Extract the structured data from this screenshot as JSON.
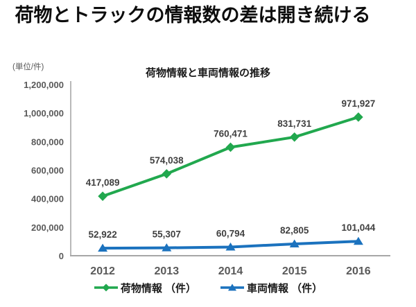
{
  "header": {
    "title": "荷物とトラックの情報数の差は開き続ける"
  },
  "chart_data": {
    "type": "line",
    "title": "荷物情報と車両情報の推移",
    "unit_label": "(単位/件)",
    "categories": [
      "2012",
      "2013",
      "2014",
      "2015",
      "2016"
    ],
    "series": [
      {
        "name": "荷物情報 （件）",
        "marker": "diamond",
        "color": "#21a84e",
        "values": [
          417089,
          574038,
          760471,
          831731,
          971927
        ],
        "data_labels": [
          "417,089",
          "574,038",
          "760,471",
          "831,731",
          "971,927"
        ]
      },
      {
        "name": "車両情報 （件）",
        "marker": "triangle",
        "color": "#1b72be",
        "values": [
          52922,
          55307,
          60794,
          82805,
          101044
        ],
        "data_labels": [
          "52,922",
          "55,307",
          "60,794",
          "82,805",
          "101,044"
        ]
      }
    ],
    "ylim": [
      0,
      1200000
    ],
    "ytick_step": 200000,
    "ytick_labels": [
      "0",
      "200,000",
      "400,000",
      "600,000",
      "800,000",
      "1,000,000",
      "1,200,000"
    ],
    "grid": false,
    "legend_position": "bottom",
    "colors": {
      "axis": "#a6a6a6",
      "tick_label": "#595959",
      "data_label": "#404040"
    }
  }
}
